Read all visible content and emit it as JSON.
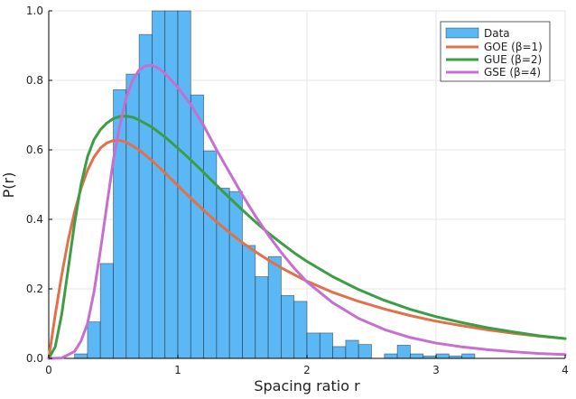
{
  "chart_data": {
    "type": "bar",
    "xlabel": "Spacing ratio r",
    "ylabel": "P(r)",
    "xlim": [
      0,
      4
    ],
    "ylim": [
      0,
      1
    ],
    "x_ticks": [
      0,
      1,
      2,
      3,
      4
    ],
    "x_tick_labels": [
      "0",
      "1",
      "2",
      "3",
      "4"
    ],
    "y_ticks": [
      0,
      0.2,
      0.4,
      0.6,
      0.8,
      1.0
    ],
    "y_tick_labels": [
      "0.0",
      "0.2",
      "0.4",
      "0.6",
      "0.8",
      "1.0"
    ],
    "grid": true,
    "legend_position": "top-right",
    "histogram": {
      "name": "Data",
      "color": "#5bb8f5",
      "bin_width": 0.1,
      "bin_starts": [
        0.2,
        0.3,
        0.4,
        0.5,
        0.6,
        0.7,
        0.8,
        0.9,
        1.0,
        1.1,
        1.2,
        1.3,
        1.4,
        1.5,
        1.6,
        1.7,
        1.8,
        1.9,
        2.0,
        2.1,
        2.2,
        2.3,
        2.4,
        2.5,
        2.6,
        2.7,
        2.8,
        2.9,
        3.0,
        3.1,
        3.2
      ],
      "values": [
        0.013,
        0.105,
        0.273,
        0.773,
        0.818,
        0.932,
        1.0,
        1.0,
        1.0,
        0.758,
        0.597,
        0.49,
        0.48,
        0.325,
        0.235,
        0.293,
        0.181,
        0.164,
        0.073,
        0.073,
        0.034,
        0.052,
        0.04,
        0.0,
        0.013,
        0.038,
        0.013,
        0.007,
        0.013,
        0.007,
        0.013
      ]
    },
    "series": [
      {
        "name": "GOE (β=1)",
        "color": "#e1714a",
        "x": [
          0,
          0.05,
          0.1,
          0.15,
          0.2,
          0.25,
          0.3,
          0.35,
          0.4,
          0.45,
          0.5,
          0.55,
          0.6,
          0.7,
          0.8,
          0.9,
          1.0,
          1.1,
          1.2,
          1.3,
          1.4,
          1.5,
          1.6,
          1.7,
          1.8,
          1.9,
          2.0,
          2.2,
          2.4,
          2.6,
          2.8,
          3.0,
          3.2,
          3.4,
          3.6,
          3.8,
          4.0
        ],
        "values": [
          0,
          0.125,
          0.239,
          0.339,
          0.422,
          0.489,
          0.541,
          0.579,
          0.605,
          0.62,
          0.627,
          0.627,
          0.622,
          0.6,
          0.569,
          0.534,
          0.497,
          0.461,
          0.426,
          0.393,
          0.362,
          0.333,
          0.307,
          0.283,
          0.261,
          0.241,
          0.222,
          0.19,
          0.164,
          0.142,
          0.123,
          0.107,
          0.094,
          0.082,
          0.072,
          0.064,
          0.057
        ]
      },
      {
        "name": "GUE (β=2)",
        "color": "#3b9e45",
        "x": [
          0,
          0.05,
          0.1,
          0.15,
          0.2,
          0.25,
          0.3,
          0.35,
          0.4,
          0.45,
          0.5,
          0.55,
          0.6,
          0.65,
          0.7,
          0.8,
          0.9,
          1.0,
          1.1,
          1.2,
          1.3,
          1.4,
          1.5,
          1.6,
          1.7,
          1.8,
          1.9,
          2.0,
          2.2,
          2.4,
          2.6,
          2.8,
          3.0,
          3.2,
          3.4,
          3.6,
          3.8,
          4.0
        ],
        "values": [
          0,
          0.033,
          0.126,
          0.256,
          0.389,
          0.5,
          0.58,
          0.629,
          0.658,
          0.677,
          0.69,
          0.696,
          0.697,
          0.694,
          0.686,
          0.665,
          0.637,
          0.605,
          0.571,
          0.535,
          0.498,
          0.462,
          0.427,
          0.393,
          0.361,
          0.332,
          0.304,
          0.279,
          0.235,
          0.198,
          0.167,
          0.141,
          0.12,
          0.103,
          0.088,
          0.076,
          0.065,
          0.057
        ]
      },
      {
        "name": "GSE (β=4)",
        "color": "#c76fd1",
        "x": [
          0,
          0.1,
          0.2,
          0.25,
          0.3,
          0.35,
          0.4,
          0.45,
          0.5,
          0.55,
          0.6,
          0.65,
          0.7,
          0.75,
          0.8,
          0.85,
          0.9,
          1.0,
          1.1,
          1.2,
          1.3,
          1.4,
          1.5,
          1.6,
          1.7,
          1.8,
          1.9,
          2.0,
          2.2,
          2.4,
          2.6,
          2.8,
          3.0,
          3.2,
          3.4,
          3.6,
          3.8,
          4.0
        ],
        "values": [
          0,
          0.001,
          0.02,
          0.05,
          0.1,
          0.19,
          0.31,
          0.44,
          0.57,
          0.67,
          0.75,
          0.8,
          0.83,
          0.842,
          0.843,
          0.835,
          0.82,
          0.78,
          0.73,
          0.67,
          0.6,
          0.535,
          0.47,
          0.41,
          0.355,
          0.305,
          0.26,
          0.22,
          0.16,
          0.115,
          0.083,
          0.06,
          0.044,
          0.033,
          0.025,
          0.019,
          0.014,
          0.011
        ]
      }
    ]
  }
}
